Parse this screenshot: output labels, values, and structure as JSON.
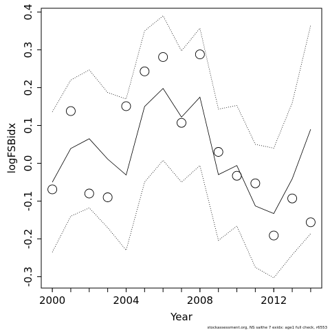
{
  "chart_data": {
    "type": "line",
    "title": "",
    "xlabel": "Year",
    "ylabel": "logFSBidx",
    "xlim": [
      1999.4,
      2014.6
    ],
    "ylim": [
      -0.33,
      0.41
    ],
    "x_ticks": [
      2000,
      2004,
      2008,
      2012
    ],
    "x_tick_labels": [
      "2000",
      "2004",
      "2008",
      "2012"
    ],
    "y_ticks": [
      -0.3,
      -0.2,
      -0.1,
      0.0,
      0.1,
      0.2,
      0.3,
      0.4
    ],
    "y_tick_labels": [
      "-0.3",
      "-0.2",
      "-0.1",
      "0.0",
      "0.1",
      "0.2",
      "0.3",
      "0.4"
    ],
    "grid": false,
    "legend": "none",
    "x": [
      2000,
      2001,
      2002,
      2003,
      2004,
      2005,
      2006,
      2007,
      2008,
      2009,
      2010,
      2011,
      2012,
      2013,
      2014
    ],
    "series": [
      {
        "style": "points-open-circle",
        "values": [
          -0.069,
          0.138,
          -0.08,
          -0.09,
          0.151,
          0.243,
          0.281,
          0.107,
          0.288,
          0.03,
          -0.033,
          -0.053,
          -0.191,
          -0.093,
          -0.156
        ]
      },
      {
        "style": "solid-line",
        "values": [
          -0.05,
          0.039,
          0.065,
          0.011,
          -0.031,
          0.15,
          0.198,
          0.122,
          0.175,
          -0.03,
          -0.006,
          -0.113,
          -0.133,
          -0.041,
          0.09
        ]
      },
      {
        "style": "dotted-line",
        "values": [
          0.136,
          0.22,
          0.247,
          0.187,
          0.17,
          0.35,
          0.39,
          0.297,
          0.357,
          0.143,
          0.153,
          0.05,
          0.04,
          0.16,
          0.365
        ]
      },
      {
        "style": "dotted-line",
        "values": [
          -0.235,
          -0.14,
          -0.118,
          -0.17,
          -0.23,
          -0.05,
          0.008,
          -0.05,
          -0.006,
          -0.204,
          -0.166,
          -0.275,
          -0.303,
          -0.242,
          -0.186
        ]
      }
    ],
    "footnote": "stockassessment.org, NS saithe 7 exidx: age1 full check, r6553"
  }
}
